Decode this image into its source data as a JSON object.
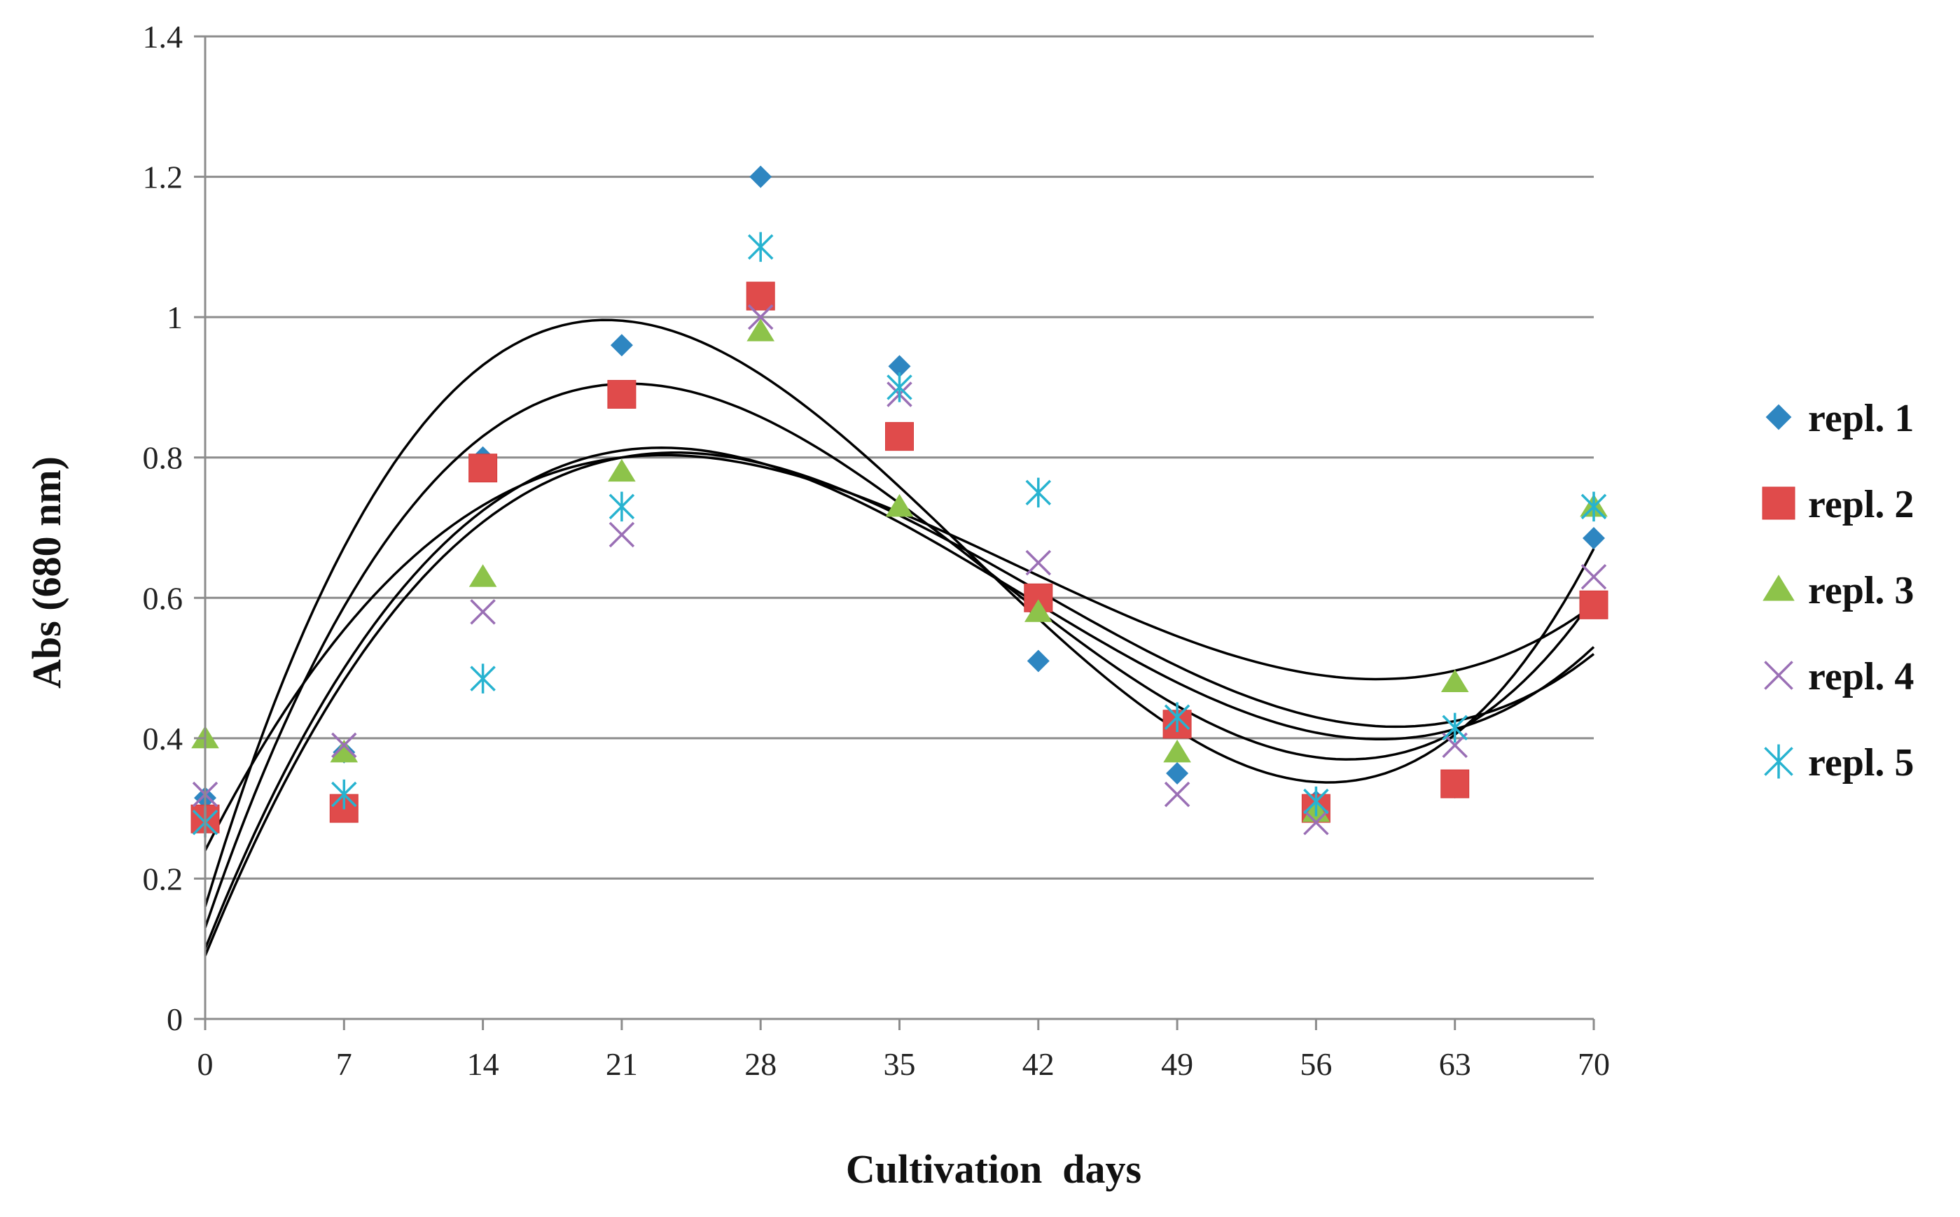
{
  "chart_data": {
    "type": "scatter",
    "title": "",
    "xlabel": "Cultivation  days",
    "ylabel": "Abs (680 nm)",
    "xlim": [
      0,
      70
    ],
    "ylim": [
      0,
      1.4
    ],
    "xticks": [
      0,
      7,
      14,
      21,
      28,
      35,
      42,
      49,
      56,
      63,
      70
    ],
    "xtick_labels": [
      "0",
      "7",
      "14",
      "21",
      "28",
      "35",
      "42",
      "49",
      "56",
      "63",
      "70"
    ],
    "yticks": [
      0,
      0.2,
      0.4,
      0.6,
      0.8,
      1.0,
      1.2,
      1.4
    ],
    "ytick_labels": [
      "0",
      "0.2",
      "0.4",
      "0.6",
      "0.8",
      "1",
      "1.2",
      "1.4"
    ],
    "grid": "horizontal",
    "legend_position": "right",
    "x": [
      0,
      7,
      14,
      21,
      28,
      35,
      42,
      49,
      56,
      63,
      70
    ],
    "series": [
      {
        "name": "repl. 1",
        "marker": "diamond",
        "color": "#2E86C1",
        "values": [
          0.315,
          0.38,
          0.8,
          0.96,
          1.2,
          0.93,
          0.51,
          0.35,
          0.31,
          0.33,
          0.685
        ]
      },
      {
        "name": "repl. 2",
        "marker": "square",
        "color": "#E04B4B",
        "values": [
          0.285,
          0.3,
          0.785,
          0.89,
          1.03,
          0.83,
          0.6,
          0.42,
          0.3,
          0.335,
          0.59
        ]
      },
      {
        "name": "repl. 3",
        "marker": "triangle",
        "color": "#8DC34A",
        "values": [
          0.4,
          0.38,
          0.63,
          0.78,
          0.98,
          0.73,
          0.58,
          0.38,
          0.295,
          0.48,
          0.73
        ]
      },
      {
        "name": "repl. 4",
        "marker": "x",
        "color": "#9A6FB5",
        "values": [
          0.32,
          0.39,
          0.58,
          0.69,
          1.0,
          0.89,
          0.65,
          0.32,
          0.28,
          0.39,
          0.63
        ]
      },
      {
        "name": "repl. 5",
        "marker": "asterisk",
        "color": "#27B3D0",
        "values": [
          0.28,
          0.32,
          0.485,
          0.73,
          1.1,
          0.9,
          0.75,
          0.43,
          0.31,
          0.415,
          0.73
        ]
      }
    ],
    "trendlines": {
      "type": "polynomial, order 3",
      "color": "#000000",
      "curves": [
        {
          "name": "repl. 1 trend",
          "points": [
            [
              0,
              0.16
            ],
            [
              21,
              0.995
            ],
            [
              58,
              0.34
            ],
            [
              70,
              0.67
            ]
          ]
        },
        {
          "name": "repl. 2 trend",
          "points": [
            [
              0,
              0.13
            ],
            [
              21,
              0.905
            ],
            [
              58,
              0.37
            ],
            [
              70,
              0.6
            ]
          ]
        },
        {
          "name": "repl. 3 trend",
          "points": [
            [
              0,
              0.24
            ],
            [
              21,
              0.8
            ],
            [
              58,
              0.485
            ],
            [
              70,
              0.59
            ]
          ]
        },
        {
          "name": "repl. 4 trend",
          "points": [
            [
              0,
              0.1
            ],
            [
              21,
              0.81
            ],
            [
              58,
              0.4
            ],
            [
              70,
              0.53
            ]
          ]
        },
        {
          "name": "repl. 5 trend",
          "points": [
            [
              0,
              0.09
            ],
            [
              21,
              0.8
            ],
            [
              58,
              0.42
            ],
            [
              70,
              0.52
            ]
          ]
        }
      ]
    }
  }
}
